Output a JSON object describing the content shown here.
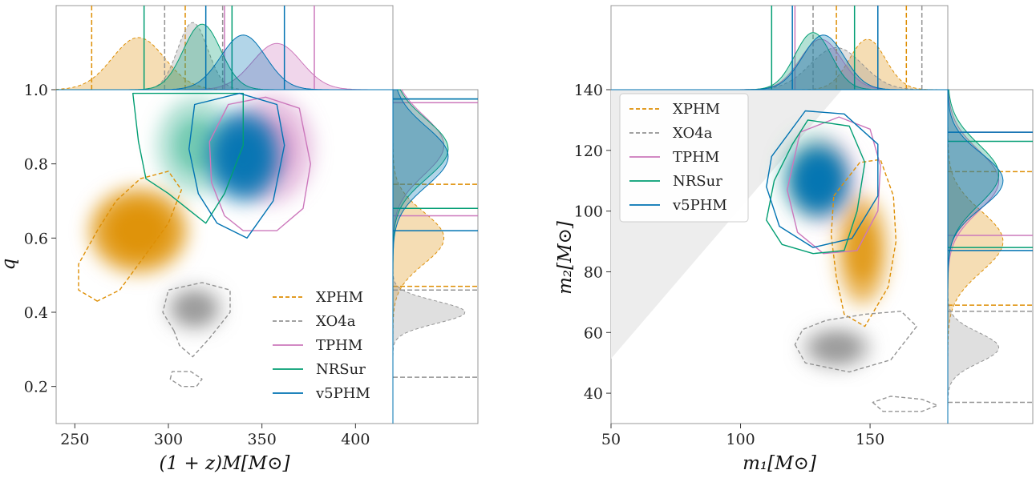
{
  "chart_data": [
    {
      "type": "scatter",
      "subtype": "corner-plot-2d-posterior-with-marginals",
      "xlabel": "(1 + z)M[M⊙]",
      "ylabel": "q",
      "xlim": [
        240,
        420
      ],
      "ylim": [
        0.1,
        1.0
      ],
      "xticks": [
        "250",
        "300",
        "350",
        "400"
      ],
      "yticks": [
        "0.2",
        "0.4",
        "0.6",
        "0.8",
        "1.0"
      ],
      "xtick_values": [
        250,
        300,
        350,
        400
      ],
      "ytick_values": [
        0.2,
        0.4,
        0.6,
        0.8,
        1.0
      ],
      "grid": false,
      "legend_position": "lower-right",
      "series": [
        {
          "name": "XPHM",
          "color": "#de8f05",
          "dash": true,
          "peak": [
            284,
            0.62
          ],
          "sd": [
            16,
            0.07
          ],
          "amp": 1.0,
          "contour": [
            [
              262,
              0.43
            ],
            [
              252,
              0.46
            ],
            [
              252,
              0.53
            ],
            [
              262,
              0.62
            ],
            [
              272,
              0.7
            ],
            [
              285,
              0.76
            ],
            [
              300,
              0.78
            ],
            [
              307,
              0.73
            ],
            [
              300,
              0.64
            ],
            [
              287,
              0.55
            ],
            [
              274,
              0.46
            ]
          ],
          "x_marginal": {
            "peak": 284,
            "sd": 14,
            "height": 0.62,
            "interval": [
              259,
              309
            ]
          },
          "y_marginal": {
            "peak": 0.6,
            "sd": 0.07,
            "height": 0.6,
            "interval": [
              0.47,
              0.745
            ]
          }
        },
        {
          "name": "XO4a",
          "color": "#949494",
          "dash": true,
          "peak": [
            314,
            0.41
          ],
          "sd": [
            9,
            0.035
          ],
          "amp": 0.9,
          "contour": [
            [
              303,
              0.35
            ],
            [
              297,
              0.4
            ],
            [
              300,
              0.46
            ],
            [
              318,
              0.48
            ],
            [
              333,
              0.46
            ],
            [
              333,
              0.4
            ],
            [
              322,
              0.33
            ],
            [
              313,
              0.28
            ],
            [
              306,
              0.31
            ]
          ],
          "contour2": [
            [
              301,
              0.22
            ],
            [
              302,
              0.24
            ],
            [
              312,
              0.24
            ],
            [
              318,
              0.22
            ],
            [
              315,
              0.2
            ],
            [
              307,
              0.2
            ]
          ],
          "x_marginal": {
            "peak": 313,
            "sd": 8,
            "height": 0.8,
            "interval": [
              298,
              329
            ]
          },
          "y_marginal": {
            "peak": 0.4,
            "sd": 0.03,
            "height": 0.85,
            "interval": [
              0.225,
              0.46
            ]
          }
        },
        {
          "name": "TPHM",
          "color": "#cc78bc",
          "dash": false,
          "peak": [
            355,
            0.84
          ],
          "sd": [
            14,
            0.09
          ],
          "amp": 0.55,
          "contour": [
            [
              332,
              0.96
            ],
            [
              352,
              0.98
            ],
            [
              370,
              0.95
            ],
            [
              376,
              0.8
            ],
            [
              372,
              0.68
            ],
            [
              358,
              0.62
            ],
            [
              340,
              0.62
            ],
            [
              330,
              0.66
            ],
            [
              323,
              0.75
            ],
            [
              322,
              0.86
            ]
          ],
          "x_marginal": {
            "peak": 358,
            "sd": 13,
            "height": 0.55,
            "interval": [
              330,
              378
            ]
          },
          "y_marginal": {
            "peak": 0.85,
            "sd": 0.08,
            "height": 0.6,
            "interval": [
              0.66,
              0.965
            ]
          }
        },
        {
          "name": "NRSur",
          "color": "#029e73",
          "dash": false,
          "peak": [
            315,
            0.85
          ],
          "sd": [
            13,
            0.08
          ],
          "amp": 0.4,
          "contour": [
            [
              281,
              0.99
            ],
            [
              340,
              0.99
            ],
            [
              340,
              0.85
            ],
            [
              330,
              0.72
            ],
            [
              320,
              0.64
            ],
            [
              310,
              0.68
            ],
            [
              300,
              0.72
            ],
            [
              288,
              0.76
            ],
            [
              284,
              0.86
            ]
          ],
          "x_marginal": {
            "peak": 318,
            "sd": 10,
            "height": 0.78,
            "interval": [
              287,
              334
            ]
          },
          "y_marginal": {
            "peak": 0.84,
            "sd": 0.08,
            "height": 0.65,
            "interval": [
              0.68,
              0.975
            ]
          }
        },
        {
          "name": "v5PHM",
          "color": "#0173b2",
          "dash": false,
          "peak": [
            340,
            0.82
          ],
          "sd": [
            12,
            0.075
          ],
          "amp": 1.0,
          "contour": [
            [
              314,
              0.96
            ],
            [
              338,
              0.99
            ],
            [
              358,
              0.96
            ],
            [
              362,
              0.85
            ],
            [
              356,
              0.7
            ],
            [
              342,
              0.6
            ],
            [
              326,
              0.64
            ],
            [
              316,
              0.72
            ],
            [
              311,
              0.84
            ]
          ],
          "x_marginal": {
            "peak": 340,
            "sd": 12,
            "height": 0.65,
            "interval": [
              320,
              362
            ]
          },
          "y_marginal": {
            "peak": 0.82,
            "sd": 0.08,
            "height": 0.65,
            "interval": [
              0.62,
              0.975
            ]
          }
        }
      ]
    },
    {
      "type": "scatter",
      "subtype": "corner-plot-2d-posterior-with-marginals",
      "xlabel": "m₁[M⊙]",
      "ylabel": "m₂[M⊙]",
      "xlim": [
        50,
        180
      ],
      "ylim": [
        30,
        140
      ],
      "xticks": [
        "50",
        "100",
        "150"
      ],
      "yticks": [
        "40",
        "60",
        "80",
        "100",
        "120",
        "140"
      ],
      "xtick_values": [
        50,
        100,
        150
      ],
      "ytick_values": [
        40,
        60,
        80,
        100,
        120,
        140
      ],
      "excluded_region": "m2 > m1 (shaded gray)",
      "grid": false,
      "legend_position": "upper-left",
      "series": [
        {
          "name": "XPHM",
          "color": "#de8f05",
          "dash": true,
          "peak": [
            147,
            87
          ],
          "sd": [
            6,
            11
          ],
          "amp": 0.8,
          "contour": [
            [
              136,
              105
            ],
            [
              146,
              116
            ],
            [
              154,
              117
            ],
            [
              159,
              105
            ],
            [
              160,
              90
            ],
            [
              157,
              75
            ],
            [
              148,
              62
            ],
            [
              140,
              66
            ],
            [
              137,
              78
            ],
            [
              135,
              92
            ]
          ],
          "x_marginal": {
            "peak": 149,
            "sd": 7,
            "height": 0.6,
            "interval": [
              137,
              164
            ]
          },
          "y_marginal": {
            "peak": 90,
            "sd": 10,
            "height": 0.65,
            "interval": [
              69,
              113
            ]
          }
        },
        {
          "name": "XO4a",
          "color": "#949494",
          "dash": true,
          "peak": [
            137,
            55
          ],
          "sd": [
            8,
            4
          ],
          "amp": 0.9,
          "contour": [
            [
              121,
              56
            ],
            [
              125,
              50
            ],
            [
              142,
              47
            ],
            [
              158,
              51
            ],
            [
              168,
              62
            ],
            [
              162,
              67
            ],
            [
              148,
              66
            ],
            [
              133,
              64
            ],
            [
              124,
              61
            ]
          ],
          "contour2": [
            [
              151,
              37
            ],
            [
              155,
              34
            ],
            [
              170,
              34
            ],
            [
              176,
              36
            ],
            [
              170,
              38
            ],
            [
              158,
              39
            ]
          ],
          "x_marginal": {
            "peak": 137,
            "sd": 10,
            "height": 0.5,
            "interval": [
              128,
              170
            ]
          },
          "y_marginal": {
            "peak": 55,
            "sd": 5,
            "height": 0.6,
            "interval": [
              37,
              67
            ]
          }
        },
        {
          "name": "TPHM",
          "color": "#cc78bc",
          "dash": false,
          "peak": [
            133,
            110
          ],
          "sd": [
            8,
            9
          ],
          "amp": 0.35,
          "contour": [
            [
              123,
              126
            ],
            [
              138,
              131
            ],
            [
              150,
              127
            ],
            [
              154,
              115
            ],
            [
              153,
              100
            ],
            [
              145,
              87
            ],
            [
              132,
              86
            ],
            [
              122,
              93
            ],
            [
              118,
              107
            ]
          ],
          "x_marginal": {
            "peak": 131,
            "sd": 8,
            "height": 0.6,
            "interval": [
              121,
              153
            ]
          },
          "y_marginal": {
            "peak": 110,
            "sd": 10,
            "height": 0.6,
            "interval": [
              92,
              126
            ]
          }
        },
        {
          "name": "NRSur",
          "color": "#029e73",
          "dash": false,
          "peak": [
            128,
            112
          ],
          "sd": [
            8,
            9
          ],
          "amp": 0.3,
          "contour": [
            [
              126,
              130
            ],
            [
              142,
              128
            ],
            [
              148,
              116
            ],
            [
              145,
              100
            ],
            [
              140,
              87
            ],
            [
              128,
              86
            ],
            [
              116,
              89
            ],
            [
              110,
              97
            ],
            [
              113,
              110
            ],
            [
              120,
              122
            ]
          ],
          "x_marginal": {
            "peak": 128,
            "sd": 7,
            "height": 0.68,
            "interval": [
              112,
              144
            ]
          },
          "y_marginal": {
            "peak": 112,
            "sd": 10,
            "height": 0.6,
            "interval": [
              88,
              123
            ]
          }
        },
        {
          "name": "v5PHM",
          "color": "#0173b2",
          "dash": false,
          "peak": [
            130,
            110
          ],
          "sd": [
            7,
            7
          ],
          "amp": 1.0,
          "contour": [
            [
              112,
              118
            ],
            [
              125,
              133
            ],
            [
              140,
              132
            ],
            [
              153,
              122
            ],
            [
              153,
              105
            ],
            [
              143,
              91
            ],
            [
              128,
              88
            ],
            [
              115,
              95
            ],
            [
              110,
              108
            ]
          ],
          "x_marginal": {
            "peak": 132,
            "sd": 8,
            "height": 0.65,
            "interval": [
              120,
              153
            ]
          },
          "y_marginal": {
            "peak": 110,
            "sd": 9,
            "height": 0.65,
            "interval": [
              87,
              126
            ]
          }
        }
      ]
    }
  ]
}
